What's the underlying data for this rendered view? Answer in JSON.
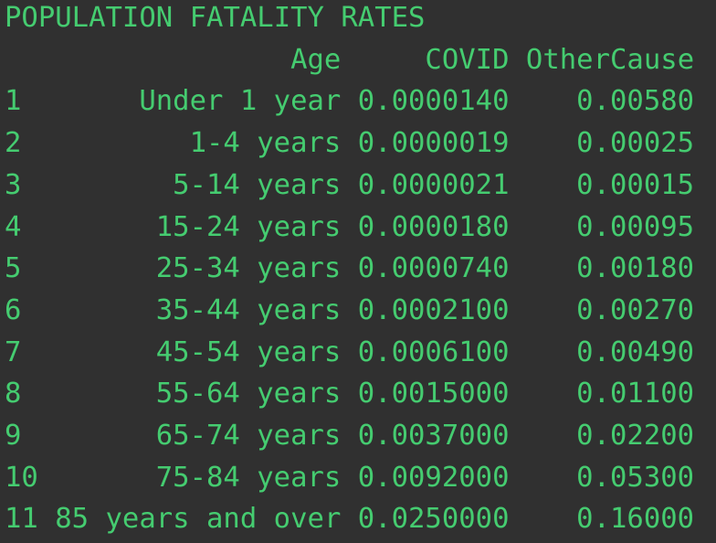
{
  "header": {
    "title": "POPULATION FATALITY RATES"
  },
  "table": {
    "columns": [
      "Age",
      "COVID",
      "OtherCause"
    ],
    "rows": [
      [
        "1",
        "Under 1 year",
        "0.0000140",
        "0.00580"
      ],
      [
        "2",
        "1-4 years",
        "0.0000019",
        "0.00025"
      ],
      [
        "3",
        "5-14 years",
        "0.0000021",
        "0.00015"
      ],
      [
        "4",
        "15-24 years",
        "0.0000180",
        "0.00095"
      ],
      [
        "5",
        "25-34 years",
        "0.0000740",
        "0.00180"
      ],
      [
        "6",
        "35-44 years",
        "0.0002100",
        "0.00270"
      ],
      [
        "7",
        "45-54 years",
        "0.0006100",
        "0.00490"
      ],
      [
        "8",
        "55-64 years",
        "0.0015000",
        "0.01100"
      ],
      [
        "9",
        "65-74 years",
        "0.0037000",
        "0.02200"
      ],
      [
        "10",
        "75-84 years",
        "0.0092000",
        "0.05300"
      ],
      [
        "11",
        "85 years and over",
        "0.0250000",
        "0.16000"
      ]
    ]
  }
}
